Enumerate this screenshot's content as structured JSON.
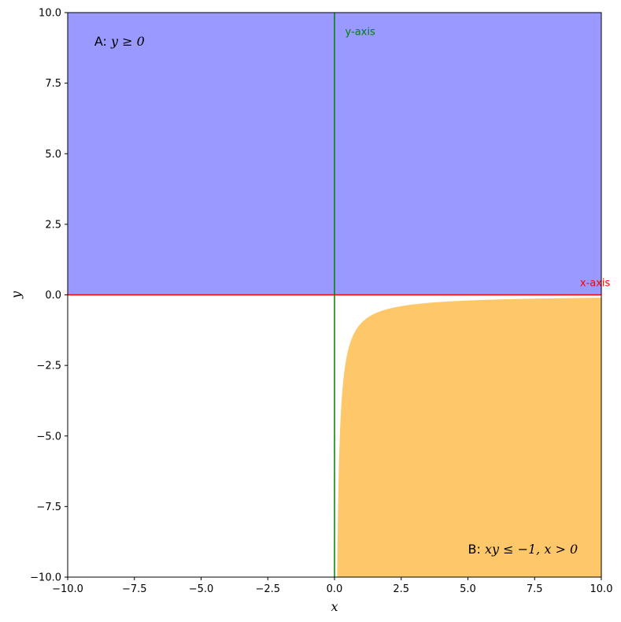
{
  "chart_data": {
    "type": "area",
    "title": "",
    "xlabel": "x",
    "ylabel": "y",
    "xlim": [
      -10,
      10
    ],
    "ylim": [
      -10,
      10
    ],
    "xticks": [
      -10,
      -7.5,
      -5,
      -2.5,
      0,
      2.5,
      5,
      7.5,
      10
    ],
    "yticks": [
      -10,
      -7.5,
      -5,
      -2.5,
      0,
      2.5,
      5,
      7.5,
      10
    ],
    "xtick_labels": [
      "−10.0",
      "−7.5",
      "−5.0",
      "−2.5",
      "0.0",
      "2.5",
      "5.0",
      "7.5",
      "10.0"
    ],
    "ytick_labels": [
      "−10.0",
      "−7.5",
      "−5.0",
      "−2.5",
      "0.0",
      "2.5",
      "5.0",
      "7.5",
      "10.0"
    ],
    "grid": false,
    "regions": [
      {
        "id": "A",
        "label_prefix": "A: ",
        "label_math": "y ≥ 0",
        "condition": "y >= 0",
        "color": "#9999ff",
        "label_pos": [
          -9,
          9
        ]
      },
      {
        "id": "B",
        "label_prefix": "B: ",
        "label_math": "xy ≤ −1,  x > 0",
        "condition": "x*y <= -1, x > 0",
        "color": "#fdc76a",
        "boundary": "y = -1/x",
        "label_pos": [
          5,
          -9
        ]
      }
    ],
    "lines": [
      {
        "name": "x-axis",
        "orientation": "horizontal",
        "value": 0,
        "color": "#ff0000",
        "label_pos": [
          9.2,
          0.3
        ]
      },
      {
        "name": "y-axis",
        "orientation": "vertical",
        "value": 0,
        "color": "#008000",
        "label_pos": [
          0.4,
          9.2
        ]
      }
    ]
  }
}
